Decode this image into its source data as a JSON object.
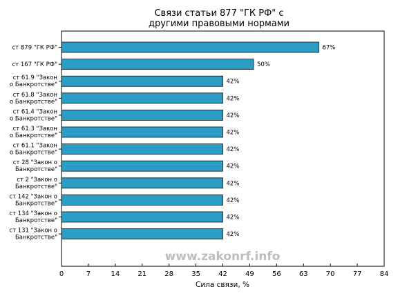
{
  "chart_data": {
    "type": "bar",
    "orientation": "horizontal",
    "title": [
      "Связи статьи 877 \"ГК РФ\" с",
      "другими правовыми нормами"
    ],
    "xlabel": "Сила связи, %",
    "ylabel": "",
    "xlim": [
      0,
      84
    ],
    "xticks": [
      0,
      7,
      14,
      21,
      28,
      35,
      42,
      49,
      56,
      63,
      70,
      77,
      84
    ],
    "value_suffix": "%",
    "bar_color": "#2b9cc3",
    "grid": false,
    "categories": [
      [
        "ст 879 \"ГК РФ\""
      ],
      [
        "ст 167 \"ГК РФ\""
      ],
      [
        "ст 61.9 \"Закон",
        "о Банкротстве\""
      ],
      [
        "ст 61.8 \"Закон",
        "о Банкротстве\""
      ],
      [
        "ст 61.4 \"Закон",
        "о Банкротстве\""
      ],
      [
        "ст 61.3 \"Закон",
        "о Банкротстве\""
      ],
      [
        "ст 61.1 \"Закон",
        "о Банкротстве\""
      ],
      [
        "ст 28 \"Закон о",
        "Банкротстве\""
      ],
      [
        "ст 2 \"Закон о",
        "Банкротстве\""
      ],
      [
        "ст 142 \"Закон о",
        "Банкротстве\""
      ],
      [
        "ст 134 \"Закон о",
        "Банкротстве\""
      ],
      [
        "ст 131 \"Закон о",
        "Банкротстве\""
      ]
    ],
    "values": [
      67,
      50,
      42,
      42,
      42,
      42,
      42,
      42,
      42,
      42,
      42,
      42
    ]
  },
  "watermark": "www.zakonrf.info"
}
